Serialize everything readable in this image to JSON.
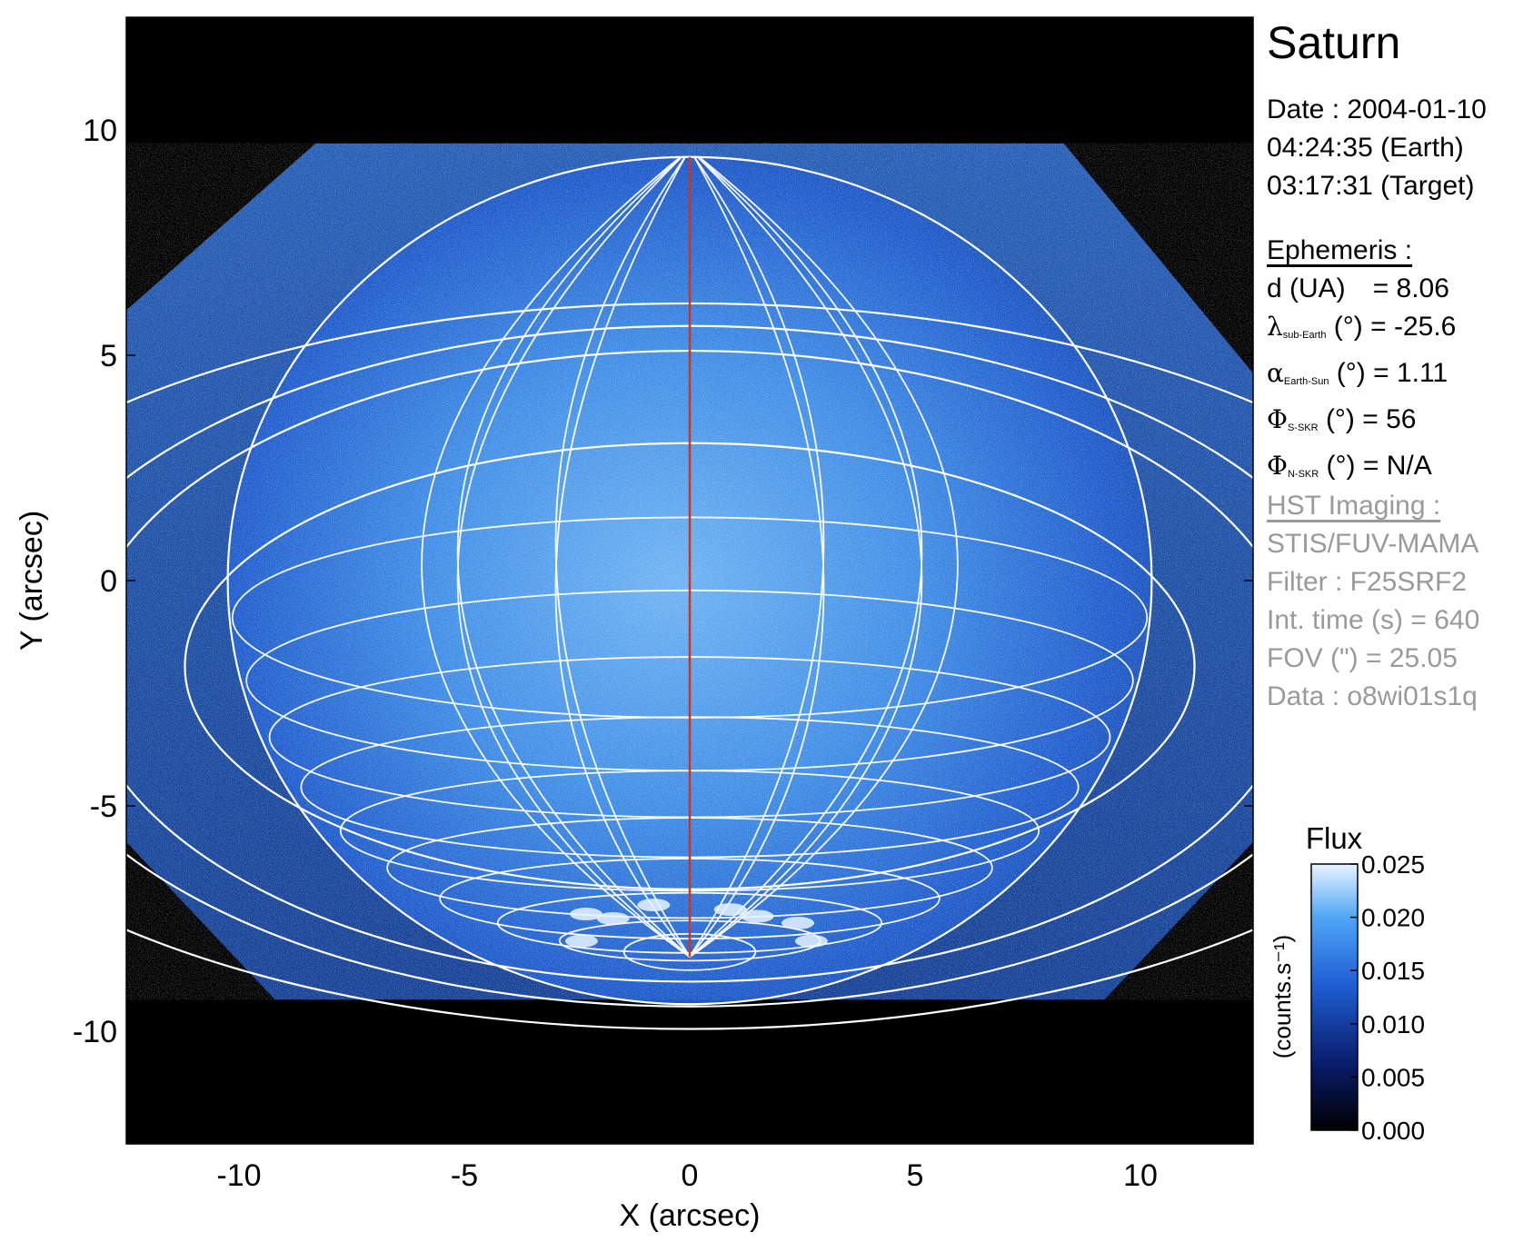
{
  "chart_data": {
    "type": "heatmap",
    "xlabel": "X (arcsec)",
    "ylabel": "Y (arcsec)",
    "xlim": [
      -12.5,
      12.5
    ],
    "ylim": [
      -12.5,
      12.5
    ],
    "x_ticks": [
      -10,
      -5,
      0,
      5,
      10
    ],
    "y_ticks": [
      -10,
      -5,
      0,
      5,
      10
    ],
    "x_tick_labels": [
      "-10",
      "-5",
      "0",
      "5",
      "10"
    ],
    "y_tick_labels": [
      "-10",
      "-5",
      "0",
      "5",
      "10"
    ],
    "colorbar": {
      "title": "Flux",
      "label": "(counts.s⁻¹)",
      "ticks": [
        0.0,
        0.005,
        0.01,
        0.015,
        0.02,
        0.025
      ],
      "tick_labels": [
        "0.000",
        "0.005",
        "0.010",
        "0.015",
        "0.020",
        "0.025"
      ],
      "range": [
        0.0,
        0.025
      ]
    },
    "colormap": [
      "#000000",
      "#0a1c6a",
      "#1f5fd4",
      "#4fa6f5",
      "#e8f4ff"
    ],
    "grid_color": "#ffffff",
    "central_meridian_color": "#d0341c",
    "planet": {
      "center": [
        0.0,
        0.0
      ],
      "equatorial_radius": 10.25,
      "polar_radius": 9.4,
      "south_pole_xy": [
        0.0,
        -8.35
      ],
      "north_pole_xy": [
        0.0,
        9.4
      ]
    },
    "rings_semi_axes": [
      [
        18.2,
        8.05
      ],
      [
        15.0,
        7.55
      ],
      [
        13.5,
        7.0
      ],
      [
        11.2,
        4.95
      ]
    ],
    "ring_center_y": -1.9,
    "aurora_points": [
      [
        -2.3,
        -7.4
      ],
      [
        -2.4,
        -8.0
      ],
      [
        -1.7,
        -7.5
      ],
      [
        -0.8,
        -7.2
      ],
      [
        0.9,
        -7.3
      ],
      [
        1.5,
        -7.45
      ],
      [
        2.4,
        -7.6
      ],
      [
        2.7,
        -8.0
      ]
    ]
  },
  "side_panel": {
    "title": "Saturn",
    "date": "Date : 2004-01-10",
    "time_earth": "04:24:35 (Earth)",
    "time_target": "03:17:31 (Target)",
    "ephemeris_header": "Ephemeris :",
    "d_label": "d (UA)",
    "d_value": "= 8.06",
    "lambda_sym": "λ",
    "lambda_sub": "sub-Earth",
    "lambda_value": "(°) = -25.6",
    "alpha_sym": "α",
    "alpha_sub": "Earth-Sun",
    "alpha_value": "(°) = 1.11",
    "phi_s_sym": "Φ",
    "phi_s_sub": "S-SKR",
    "phi_s_value": "(°)   = 56",
    "phi_n_sym": "Φ",
    "phi_n_sub": "N-SKR",
    "phi_n_value": "(°)   = N/A",
    "hst_header": "HST Imaging :",
    "instrument": "STIS/FUV-MAMA",
    "filter": "Filter : F25SRF2",
    "int_time": "Int. time (s) = 640",
    "fov": "FOV (\") = 25.05",
    "data_id": "Data : o8wi01s1q"
  }
}
